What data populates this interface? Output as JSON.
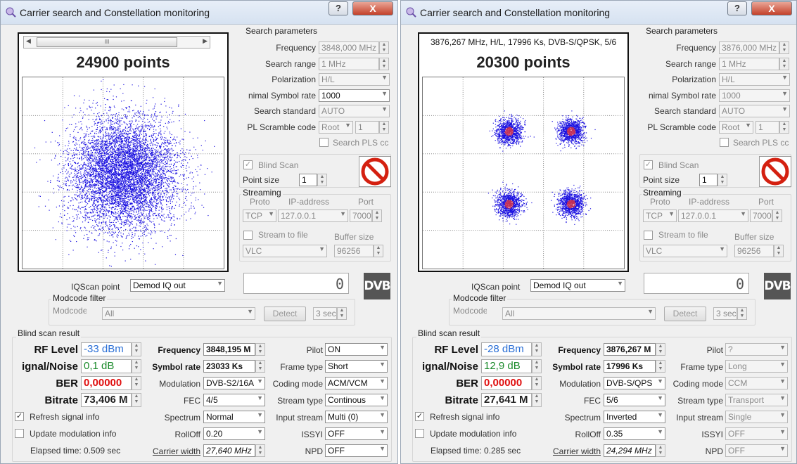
{
  "left": {
    "title": "Carrier search and Constellation monitoring",
    "help_label": "?",
    "close_label": "X",
    "points_label": "24900 points",
    "info_line": "",
    "search": {
      "title": "Search parameters",
      "frequency_label": "Frequency",
      "frequency": "3848,000 MHz",
      "range_label": "Search range",
      "range": "1 MHz",
      "pol_label": "Polarization",
      "pol": "H/L",
      "sr_label": "nimal Symbol rate",
      "sr": "1000",
      "std_label": "Search standard",
      "std": "AUTO",
      "pl_label": "PL Scramble code",
      "pl_mode": "Root",
      "pl_val": "1",
      "pls_label": "Search PLS cc"
    },
    "blind_label": "Blind Scan",
    "pointsize_label": "Point size",
    "pointsize": "1",
    "streaming": {
      "title": "Streaming",
      "proto_label": "Proto",
      "ip_label": "IP-address",
      "port_label": "Port",
      "proto": "TCP",
      "ip": "127.0.0.1",
      "port": "7000",
      "file_label": "Stream to file",
      "buf_label": "Buffer size",
      "player": "VLC",
      "buf": "96256"
    },
    "counter": "0",
    "dvb_label": "DVB",
    "iq_label": "IQScan point",
    "iq": "Demod IQ out",
    "modcode": {
      "title": "Modcode filter",
      "label": "Modcode",
      "value": "All",
      "detect": "Detect",
      "sec": "3 sec"
    },
    "result": {
      "title": "Blind scan result",
      "rf_label": "RF Level",
      "rf": "-33 dBm",
      "sn_label": "ignal/Noise",
      "sn": "0,1 dB",
      "ber_label": "BER",
      "ber": "0,00000",
      "bitrate_label": "Bitrate",
      "bitrate": "73,406 M",
      "freq_label": "Frequency",
      "freq": "3848,195 M",
      "symrate_label": "Symbol rate",
      "symrate": "23033 Ks",
      "mod_label": "Modulation",
      "mod": "DVB-S2/16A",
      "fec_label": "FEC",
      "fec": "4/5",
      "spec_label": "Spectrum",
      "spec": "Normal",
      "roll_label": "RollOff",
      "roll": "0.20",
      "cw_label": "Carrier width",
      "cw": "27,640 MHz",
      "pilot_label": "Pilot",
      "pilot": "ON",
      "frame_label": "Frame type",
      "frame": "Short",
      "coding_label": "Coding mode",
      "coding": "ACM/VCM",
      "stype_label": "Stream type",
      "stype": "Continous",
      "istream_label": "Input stream",
      "istream": "Multi (0)",
      "issyi_label": "ISSYI",
      "issyi": "OFF",
      "npd_label": "NPD",
      "npd": "OFF",
      "refresh_label": "Refresh signal info",
      "update_label": "Update modulation info",
      "elapsed": "Elapsed time: 0.509 sec"
    }
  },
  "right": {
    "title": "Carrier search and Constellation monitoring",
    "help_label": "?",
    "close_label": "X",
    "points_label": "20300 points",
    "info_line": "3876,267 MHz, H/L, 17996 Ks, DVB-S/QPSK, 5/6",
    "search": {
      "title": "Search parameters",
      "frequency_label": "Frequency",
      "frequency": "3876,000 MHz",
      "range_label": "Search range",
      "range": "1 MHz",
      "pol_label": "Polarization",
      "pol": "H/L",
      "sr_label": "nimal Symbol rate",
      "sr": "1000",
      "std_label": "Search standard",
      "std": "AUTO",
      "pl_label": "PL Scramble code",
      "pl_mode": "Root",
      "pl_val": "1",
      "pls_label": "Search PLS cc"
    },
    "blind_label": "Blind Scan",
    "pointsize_label": "Point size",
    "pointsize": "1",
    "streaming": {
      "title": "Streaming",
      "proto_label": "Proto",
      "ip_label": "IP-address",
      "port_label": "Port",
      "proto": "TCP",
      "ip": "127.0.0.1",
      "port": "7000",
      "file_label": "Stream to file",
      "buf_label": "Buffer size",
      "player": "VLC",
      "buf": "96256"
    },
    "counter": "0",
    "dvb_label": "DVB",
    "iq_label": "IQScan point",
    "iq": "Demod IQ out",
    "modcode": {
      "title": "Modcode filter",
      "label": "Modcode",
      "value": "All",
      "detect": "Detect",
      "sec": "3 sec"
    },
    "result": {
      "title": "Blind scan result",
      "rf_label": "RF Level",
      "rf": "-28 dBm",
      "sn_label": "ignal/Noise",
      "sn": "12,9 dB",
      "ber_label": "BER",
      "ber": "0,00000",
      "bitrate_label": "Bitrate",
      "bitrate": "27,641 M",
      "freq_label": "Frequency",
      "freq": "3876,267 M",
      "symrate_label": "Symbol rate",
      "symrate": "17996 Ks",
      "mod_label": "Modulation",
      "mod": "DVB-S/QPS",
      "fec_label": "FEC",
      "fec": "5/6",
      "spec_label": "Spectrum",
      "spec": "Inverted",
      "roll_label": "RollOff",
      "roll": "0.35",
      "cw_label": "Carrier width",
      "cw": "24,294 MHz",
      "pilot_label": "Pilot",
      "pilot": "?",
      "frame_label": "Frame type",
      "frame": "Long",
      "coding_label": "Coding mode",
      "coding": "CCM",
      "stype_label": "Stream type",
      "stype": "Transport",
      "istream_label": "Input stream",
      "istream": "Single",
      "issyi_label": "ISSYI",
      "issyi": "OFF",
      "npd_label": "NPD",
      "npd": "OFF",
      "refresh_label": "Refresh signal info",
      "update_label": "Update modulation info",
      "elapsed": "Elapsed time: 0.285 sec"
    }
  },
  "colors": {
    "points": "#1a10e0",
    "cluster_core": "#c0305a",
    "rf_value": "#2a6fd6",
    "sn_value": "#1a8a2a",
    "ber_value": "#e01010"
  }
}
